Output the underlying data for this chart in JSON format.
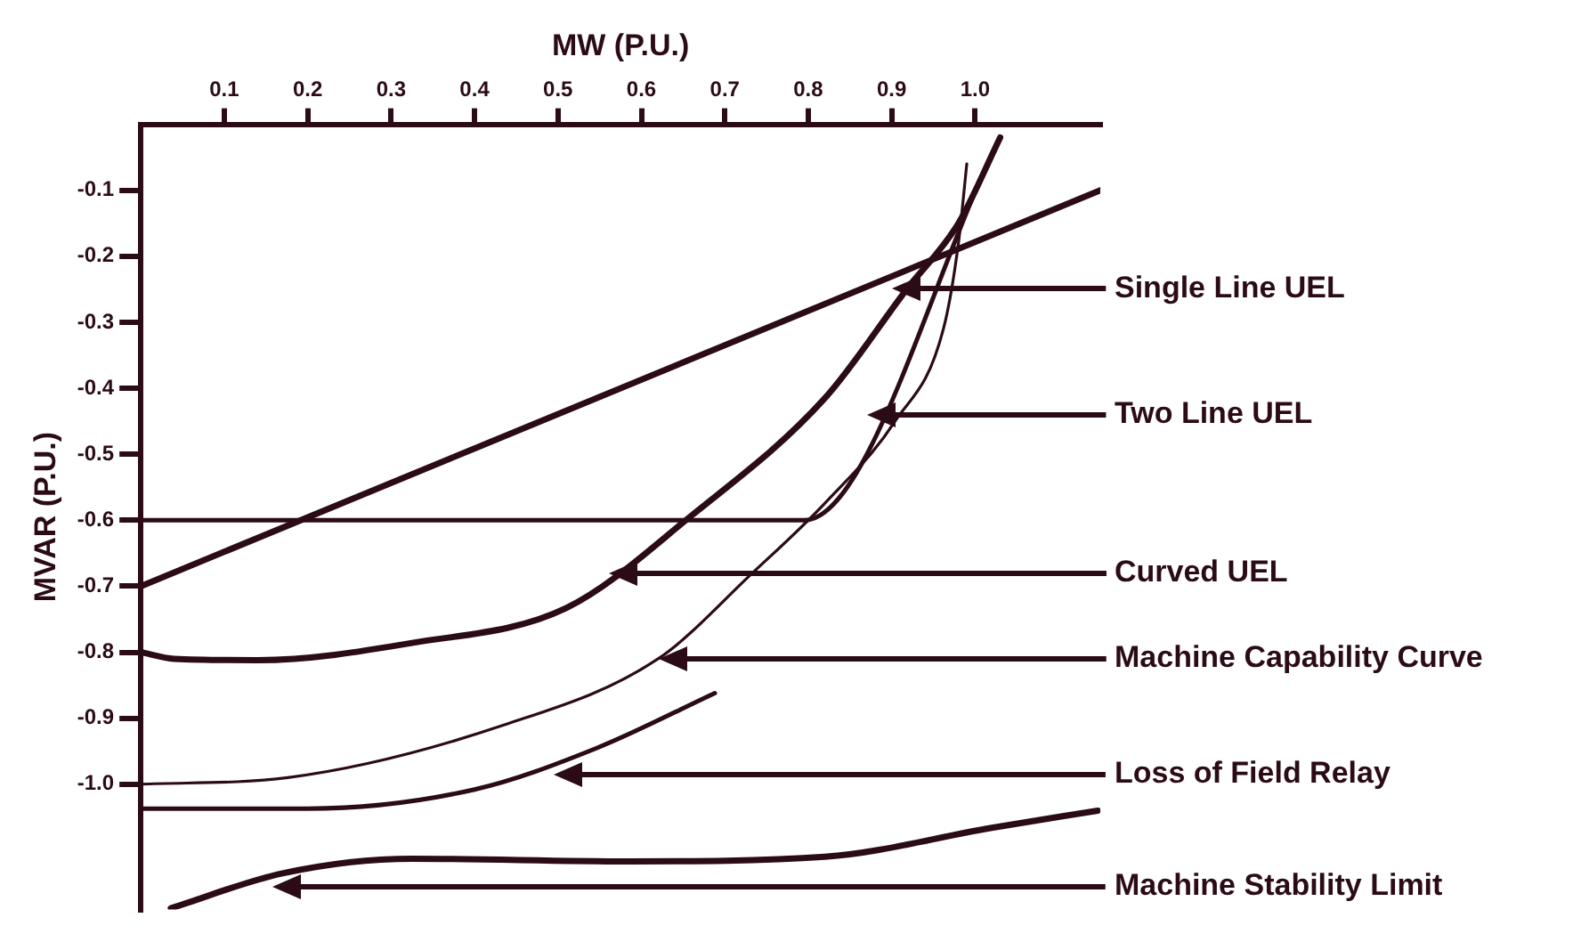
{
  "chart_data": {
    "type": "line",
    "xlabel": "MW (P.U.)",
    "ylabel": "MVAR (P.U.)",
    "xlim": [
      0,
      1.15
    ],
    "ylim": [
      -1.19,
      0
    ],
    "xticks": [
      0.1,
      0.2,
      0.3,
      0.4,
      0.5,
      0.6,
      0.7,
      0.8,
      0.9,
      {
        "value": 1,
        "label": "1.0"
      }
    ],
    "yticks": [
      -0.1,
      -0.2,
      -0.3,
      -0.4,
      -0.5,
      -0.6,
      -0.7,
      -0.8,
      -0.9,
      {
        "value": -1,
        "label": "-1.0"
      }
    ],
    "grid": false,
    "legend": false,
    "marker": "none",
    "line_style": "solid",
    "series": [
      {
        "name": "Single Line UEL",
        "color": "#2b0b16",
        "x": [
          0,
          1.15
        ],
        "values": [
          -0.7,
          -0.1
        ]
      },
      {
        "name": "Two Line UEL",
        "color": "#2b0b16",
        "x": [
          0,
          0.795,
          1.03
        ],
        "values": [
          -0.6,
          -0.6,
          -0.02
        ]
      },
      {
        "name": "Curved UEL",
        "color": "#2b0b16",
        "x": [
          0,
          0.04,
          0.14,
          0.325,
          0.51,
          0.66,
          0.82,
          0.918,
          0.98,
          1.03
        ],
        "values": [
          -0.8,
          -0.81,
          -0.812,
          -0.786,
          -0.733,
          -0.593,
          -0.415,
          -0.25,
          -0.15,
          -0.02
        ]
      },
      {
        "name": "Machine Capability Curve",
        "color": "#2b0b16",
        "x": [
          0,
          0.176,
          0.436,
          0.62,
          0.733,
          0.82,
          0.904,
          0.962,
          0.98,
          0.99
        ],
        "values": [
          -1.0,
          -0.99,
          -0.91,
          -0.81,
          -0.68,
          -0.574,
          -0.45,
          -0.31,
          -0.18,
          -0.06
        ]
      },
      {
        "name": "Loss of Field Relay",
        "color": "#2b0b16",
        "x": [
          0,
          0.2,
          0.4,
          0.547,
          0.688
        ],
        "values": [
          -1.037,
          -1.037,
          -1.008,
          -0.945,
          -0.862
        ]
      },
      {
        "name": "Machine Stability Limit",
        "color": "#2b0b16",
        "x": [
          0.036,
          0.17,
          0.325,
          0.584,
          0.82,
          1.02,
          1.147
        ],
        "values": [
          -1.188,
          -1.135,
          -1.113,
          -1.117,
          -1.11,
          -1.066,
          -1.04
        ]
      }
    ]
  }
}
